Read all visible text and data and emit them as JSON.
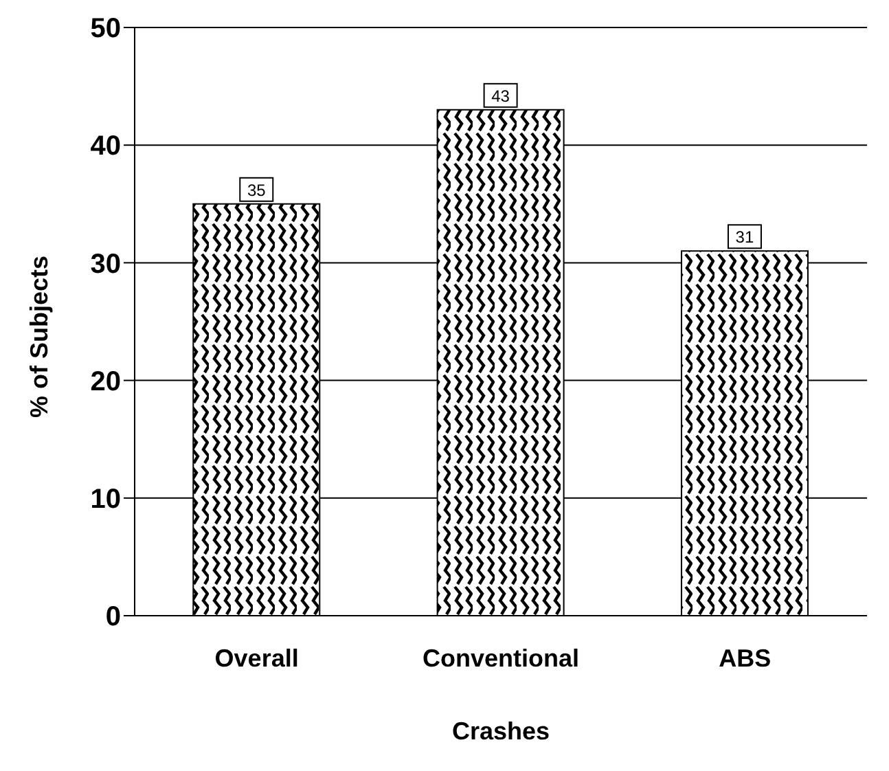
{
  "chart_data": {
    "type": "bar",
    "xlabel": "Crashes",
    "ylabel": "% of Subjects",
    "categories": [
      "Overall",
      "Conventional",
      "ABS"
    ],
    "values": [
      35,
      43,
      31
    ],
    "color": "#000000",
    "ylim": [
      0,
      50
    ],
    "yticks": [
      0,
      10,
      20,
      30,
      40,
      50
    ],
    "grid": "y",
    "data_labels": true
  }
}
